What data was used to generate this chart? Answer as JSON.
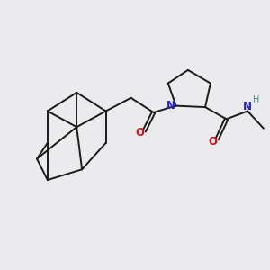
{
  "background_color": "#ebebed",
  "bond_color": "#1a1a1a",
  "N_color": "#2222cc",
  "O_color": "#cc1111",
  "H_color": "#4a9090",
  "line_width": 1.4,
  "figsize": [
    3.0,
    3.0
  ],
  "dpi": 100,
  "xlim": [
    0,
    10
  ],
  "ylim": [
    0,
    10
  ]
}
